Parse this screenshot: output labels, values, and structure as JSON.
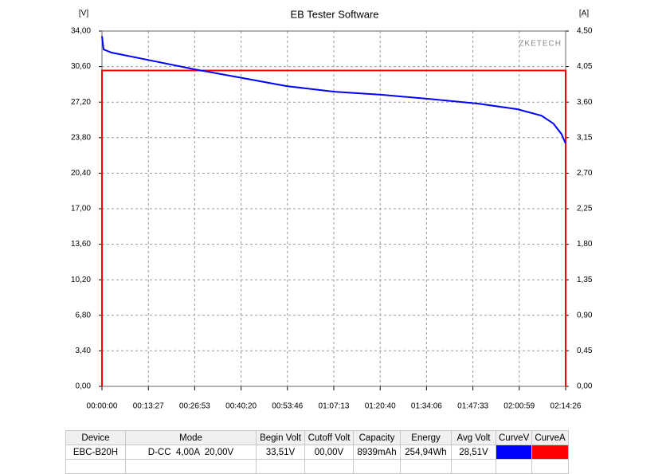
{
  "chart_data": {
    "type": "line",
    "title": "EB Tester Software",
    "y_label": "[V]",
    "y2_label": "[A]",
    "watermark": "ZKETECH",
    "xlim": [
      0,
      8066
    ],
    "xticks": [
      {
        "value": 0,
        "label": "00:00:00"
      },
      {
        "value": 807,
        "label": "00:13:27"
      },
      {
        "value": 1613,
        "label": "00:26:53"
      },
      {
        "value": 2420,
        "label": "00:40:20"
      },
      {
        "value": 3226,
        "label": "00:53:46"
      },
      {
        "value": 4033,
        "label": "01:07:13"
      },
      {
        "value": 4840,
        "label": "01:20:40"
      },
      {
        "value": 5646,
        "label": "01:34:06"
      },
      {
        "value": 6453,
        "label": "01:47:33"
      },
      {
        "value": 7259,
        "label": "02:00:59"
      },
      {
        "value": 8066,
        "label": "02:14:26"
      }
    ],
    "ylim": [
      0,
      34
    ],
    "yticks": [
      {
        "value": 0,
        "label": "0,00"
      },
      {
        "value": 3.4,
        "label": "3,40"
      },
      {
        "value": 6.8,
        "label": "6,80"
      },
      {
        "value": 10.2,
        "label": "10,20"
      },
      {
        "value": 13.6,
        "label": "13,60"
      },
      {
        "value": 17,
        "label": "17,00"
      },
      {
        "value": 20.4,
        "label": "20,40"
      },
      {
        "value": 23.8,
        "label": "23,80"
      },
      {
        "value": 27.2,
        "label": "27,20"
      },
      {
        "value": 30.6,
        "label": "30,60"
      },
      {
        "value": 34,
        "label": "34,00"
      }
    ],
    "y2lim": [
      0,
      4.5
    ],
    "y2ticks": [
      {
        "value": 0,
        "label": "0,00"
      },
      {
        "value": 0.45,
        "label": "0,45"
      },
      {
        "value": 0.9,
        "label": "0,90"
      },
      {
        "value": 1.35,
        "label": "1,35"
      },
      {
        "value": 1.8,
        "label": "1,80"
      },
      {
        "value": 2.25,
        "label": "2,25"
      },
      {
        "value": 2.7,
        "label": "2,70"
      },
      {
        "value": 3.15,
        "label": "3,15"
      },
      {
        "value": 3.6,
        "label": "3,60"
      },
      {
        "value": 4.05,
        "label": "4,05"
      },
      {
        "value": 4.5,
        "label": "4,50"
      }
    ],
    "grid": true,
    "series": [
      {
        "name": "CurveV",
        "color": "#0000ff",
        "axis": "y",
        "x": [
          0,
          28,
          166,
          790,
          1620,
          2383,
          3214,
          4045,
          4876,
          5706,
          6537,
          7230,
          7645,
          7853,
          7992,
          8066
        ],
        "values": [
          33.5,
          32.24,
          31.94,
          31.25,
          30.33,
          29.57,
          28.73,
          28.2,
          27.9,
          27.5,
          27.06,
          26.52,
          25.91,
          25.15,
          24.16,
          23.25
        ]
      },
      {
        "name": "CurveA",
        "color": "#ff0000",
        "axis": "y2",
        "x": [
          0,
          0,
          8066,
          8066
        ],
        "values": [
          0,
          4,
          4,
          0
        ]
      }
    ]
  },
  "table": {
    "headers": [
      "Device",
      "Mode",
      "Begin Volt",
      "Cutoff Volt",
      "Capacity",
      "Energy",
      "Avg Volt",
      "CurveV",
      "CurveA"
    ],
    "rows": [
      [
        "EBC-B20H",
        "D-CC  4,00A  20,00V",
        "33,51V",
        "00,00V",
        "8939mAh",
        "254,94Wh",
        "28,51V"
      ]
    ]
  }
}
